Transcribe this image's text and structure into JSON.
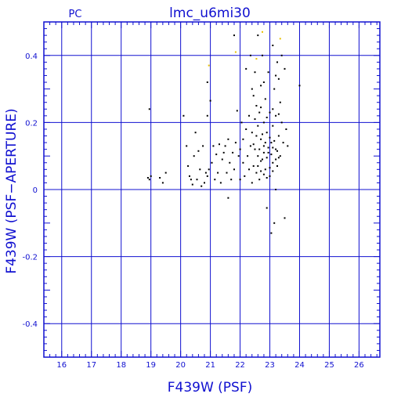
{
  "chart_data": {
    "type": "scatter",
    "title": "lmc_u6mi30",
    "corner_label": "PC",
    "xlabel": "F439W (PSF)",
    "ylabel": "F439W (PSF−APERTURE)",
    "xlim": [
      15.4,
      26.7
    ],
    "ylim": [
      -0.5,
      0.5
    ],
    "x_ticks": [
      16,
      17,
      18,
      19,
      20,
      21,
      22,
      23,
      24,
      25,
      26
    ],
    "y_ticks": [
      -0.4,
      -0.2,
      0,
      0.2,
      0.4
    ],
    "grid": true,
    "colors": {
      "axes": "#1010d0",
      "points": "#000000",
      "highlight": "#e8c000"
    },
    "series": [
      {
        "color": "#000000",
        "points": [
          [
            18.9,
            0.035
          ],
          [
            18.95,
            0.03
          ],
          [
            19.0,
            0.04
          ],
          [
            18.95,
            0.24
          ],
          [
            19.3,
            0.035
          ],
          [
            19.4,
            0.02
          ],
          [
            19.5,
            0.05
          ],
          [
            20.1,
            0.22
          ],
          [
            20.2,
            0.13
          ],
          [
            20.25,
            0.07
          ],
          [
            20.3,
            0.04
          ],
          [
            20.35,
            0.03
          ],
          [
            20.4,
            0.015
          ],
          [
            20.45,
            0.1
          ],
          [
            20.5,
            0.17
          ],
          [
            20.55,
            0.03
          ],
          [
            20.6,
            0.115
          ],
          [
            20.65,
            0.06
          ],
          [
            20.7,
            0.01
          ],
          [
            20.75,
            0.13
          ],
          [
            20.8,
            0.02
          ],
          [
            20.85,
            0.05
          ],
          [
            20.9,
            0.04
          ],
          [
            20.95,
            0.06
          ],
          [
            20.9,
            0.22
          ],
          [
            20.9,
            0.32
          ],
          [
            21.0,
            0.265
          ],
          [
            21.05,
            0.08
          ],
          [
            21.1,
            0.13
          ],
          [
            21.15,
            0.03
          ],
          [
            21.2,
            0.105
          ],
          [
            21.25,
            0.05
          ],
          [
            21.3,
            0.135
          ],
          [
            21.35,
            0.02
          ],
          [
            21.4,
            0.09
          ],
          [
            21.45,
            0.11
          ],
          [
            21.5,
            0.13
          ],
          [
            21.55,
            0.05
          ],
          [
            21.6,
            0.15
          ],
          [
            21.65,
            0.08
          ],
          [
            21.7,
            0.03
          ],
          [
            21.75,
            0.11
          ],
          [
            21.8,
            0.06
          ],
          [
            21.85,
            0.14
          ],
          [
            21.9,
            0.235
          ],
          [
            21.95,
            0.1
          ],
          [
            21.6,
            -0.025
          ],
          [
            21.8,
            0.46
          ],
          [
            22.0,
            0.03
          ],
          [
            22.0,
            0.12
          ],
          [
            22.05,
            0.2
          ],
          [
            22.1,
            0.15
          ],
          [
            22.1,
            0.08
          ],
          [
            22.15,
            0.04
          ],
          [
            22.2,
            0.18
          ],
          [
            22.2,
            0.36
          ],
          [
            22.25,
            0.1
          ],
          [
            22.3,
            0.06
          ],
          [
            22.3,
            0.22
          ],
          [
            22.35,
            0.4
          ],
          [
            22.35,
            0.13
          ],
          [
            22.4,
            0.02
          ],
          [
            22.4,
            0.17
          ],
          [
            22.45,
            0.28
          ],
          [
            22.45,
            0.07
          ],
          [
            22.5,
            0.12
          ],
          [
            22.5,
            0.35
          ],
          [
            22.55,
            0.25
          ],
          [
            22.55,
            0.05
          ],
          [
            22.6,
            0.19
          ],
          [
            22.6,
            0.1
          ],
          [
            22.6,
            0.46
          ],
          [
            22.65,
            0.23
          ],
          [
            22.65,
            0.03
          ],
          [
            22.7,
            0.15
          ],
          [
            22.7,
            0.31
          ],
          [
            22.75,
            0.09
          ],
          [
            22.75,
            0.4
          ],
          [
            22.8,
            0.2
          ],
          [
            22.8,
            0.13
          ],
          [
            22.85,
            0.06
          ],
          [
            22.85,
            0.27
          ],
          [
            22.9,
            -0.055
          ],
          [
            22.9,
            0.17
          ],
          [
            22.95,
            0.11
          ],
          [
            22.95,
            0.35
          ],
          [
            23.0,
            0.23
          ],
          [
            23.0,
            0.04
          ],
          [
            23.05,
            -0.13
          ],
          [
            23.05,
            0.14
          ],
          [
            23.1,
            0.19
          ],
          [
            23.1,
            0.08
          ],
          [
            23.1,
            0.43
          ],
          [
            23.15,
            0.3
          ],
          [
            23.15,
            -0.1
          ],
          [
            23.2,
            0.12
          ],
          [
            23.2,
            0.22
          ],
          [
            23.2,
            0.0
          ],
          [
            23.25,
            0.38
          ],
          [
            23.25,
            0.07
          ],
          [
            23.3,
            0.16
          ],
          [
            23.3,
            0.33
          ],
          [
            23.35,
            0.26
          ],
          [
            23.35,
            0.1
          ],
          [
            23.4,
            0.2
          ],
          [
            23.4,
            0.4
          ],
          [
            23.45,
            0.14
          ],
          [
            23.5,
            0.36
          ],
          [
            23.5,
            -0.085
          ],
          [
            23.55,
            0.18
          ],
          [
            23.6,
            0.13
          ],
          [
            24.0,
            0.31
          ],
          [
            22.45,
            0.135
          ],
          [
            22.55,
            0.16
          ],
          [
            22.65,
            0.12
          ],
          [
            22.7,
            0.085
          ],
          [
            22.75,
            0.165
          ],
          [
            22.8,
            0.11
          ],
          [
            22.85,
            0.14
          ],
          [
            22.9,
            0.095
          ],
          [
            22.95,
            0.125
          ],
          [
            23.0,
            0.155
          ],
          [
            23.05,
            0.105
          ],
          [
            23.1,
            0.125
          ],
          [
            23.15,
            0.145
          ],
          [
            23.2,
            0.09
          ],
          [
            23.25,
            0.115
          ],
          [
            23.3,
            0.095
          ],
          [
            22.6,
            0.07
          ],
          [
            22.7,
            0.055
          ],
          [
            22.8,
            0.045
          ],
          [
            22.9,
            0.035
          ],
          [
            23.0,
            0.065
          ],
          [
            23.1,
            0.055
          ],
          [
            22.5,
            0.21
          ],
          [
            22.7,
            0.245
          ],
          [
            22.9,
            0.215
          ],
          [
            23.1,
            0.24
          ],
          [
            23.3,
            0.225
          ],
          [
            22.4,
            0.3
          ],
          [
            22.8,
            0.32
          ],
          [
            23.2,
            0.34
          ]
        ]
      },
      {
        "color": "#e8c000",
        "points": [
          [
            22.75,
            0.47
          ],
          [
            22.55,
            0.39
          ],
          [
            21.85,
            0.41
          ],
          [
            20.95,
            0.37
          ],
          [
            23.35,
            0.45
          ]
        ]
      }
    ]
  }
}
